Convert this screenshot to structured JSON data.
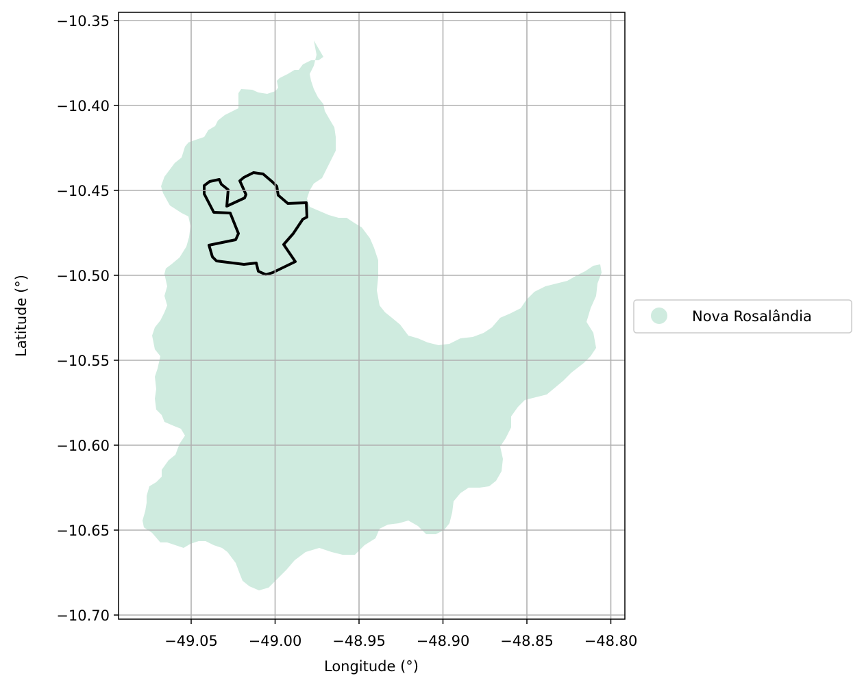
{
  "map": {
    "x_axis_label": "Longitude (°)",
    "y_axis_label": "Latitude (°)",
    "x_ticks": [
      "−49.05",
      "−49.00",
      "−48.95",
      "−48.90",
      "−48.85",
      "−48.80"
    ],
    "x_tick_values": [
      -49.05,
      -49.0,
      -48.95,
      -48.9,
      -48.85,
      -48.8
    ],
    "y_ticks": [
      "−10.35",
      "−10.40",
      "−10.45",
      "−10.50",
      "−10.55",
      "−10.60",
      "−10.65",
      "−10.70"
    ],
    "y_tick_values": [
      -10.35,
      -10.4,
      -10.45,
      -10.5,
      -10.55,
      -10.6,
      -10.65,
      -10.7
    ],
    "grid": true,
    "legend_position": "right",
    "legend": [
      {
        "label": "Nova Rosalândia",
        "color": "#cfebdf",
        "marker": "circle"
      }
    ],
    "region_fill_color": "#cfebdf",
    "outline_color": "#000000",
    "region_name": "Nova Rosalândia"
  }
}
